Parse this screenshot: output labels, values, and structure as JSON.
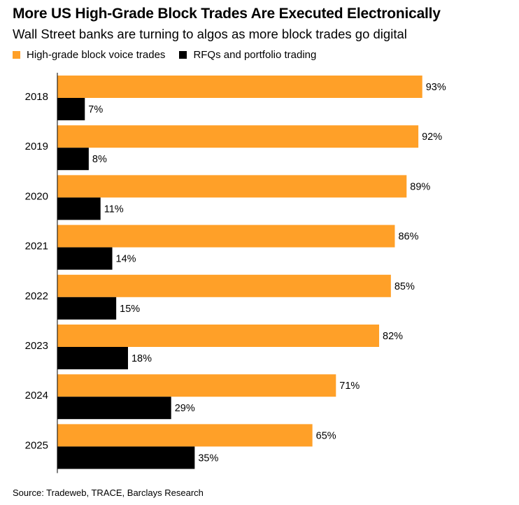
{
  "header": {
    "title": "More US High-Grade Block Trades Are Executed Electronically",
    "subtitle": "Wall Street banks are turning to algos as more block trades go digital",
    "source": "Source: Tradeweb, TRACE, Barclays Research"
  },
  "colors": {
    "voice": "#ffa028",
    "electronic": "#000000"
  },
  "chart_data": {
    "type": "bar",
    "orientation": "horizontal",
    "categories": [
      "2018",
      "2019",
      "2020",
      "2021",
      "2022",
      "2023",
      "2024",
      "2025"
    ],
    "series": [
      {
        "name": "High-grade block voice trades",
        "values": [
          93,
          92,
          89,
          86,
          85,
          82,
          71,
          65
        ],
        "labels": [
          "93%",
          "92%",
          "89%",
          "86%",
          "85%",
          "82%",
          "71%",
          "65%"
        ]
      },
      {
        "name": "RFQs and portfolio trading",
        "values": [
          7,
          8,
          11,
          14,
          15,
          18,
          29,
          35
        ],
        "labels": [
          "7%",
          "8%",
          "11%",
          "14%",
          "15%",
          "18%",
          "29%",
          "35%"
        ]
      }
    ],
    "xlim": [
      0,
      100
    ],
    "grid": false,
    "legend": "top-left"
  }
}
